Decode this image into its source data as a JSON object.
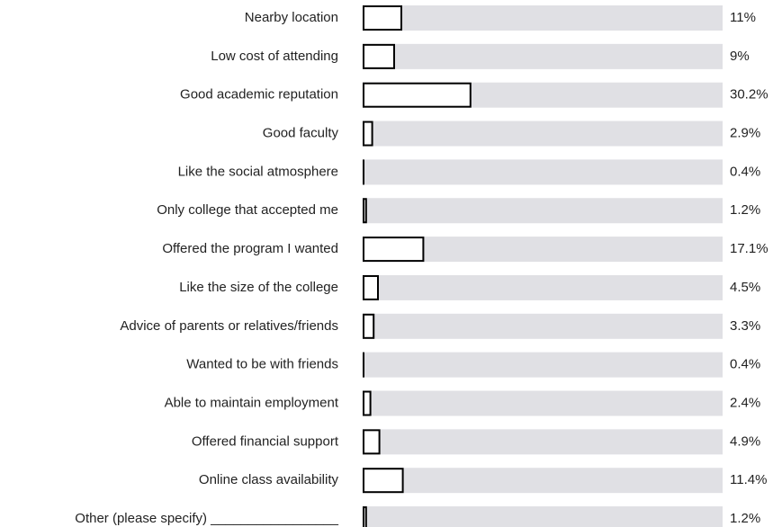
{
  "chart_data": {
    "type": "bar",
    "orientation": "horizontal",
    "categories": [
      "Nearby location",
      "Low cost of attending",
      "Good academic reputation",
      "Good faculty",
      "Like the social atmosphere",
      "Only college that accepted me",
      "Offered the program I wanted",
      "Like the size of the college",
      "Advice of parents or relatives/friends",
      "Wanted to be with friends",
      "Able to maintain employment",
      "Offered financial support",
      "Online class availability",
      "Other (please specify) _________________"
    ],
    "values": [
      11,
      9,
      30.2,
      2.9,
      0.4,
      1.2,
      17.1,
      4.5,
      3.3,
      0.4,
      2.4,
      4.9,
      11.4,
      1.2
    ],
    "value_labels": [
      "11%",
      "9%",
      "30.2%",
      "2.9%",
      "0.4%",
      "1.2%",
      "17.1%",
      "4.5%",
      "3.3%",
      "0.4%",
      "2.4%",
      "4.9%",
      "11.4%",
      "1.2%"
    ],
    "xlim": [
      0,
      100
    ],
    "color": "#ffffff",
    "edge_color": "#000000",
    "track_color": "#e0e0e4"
  }
}
